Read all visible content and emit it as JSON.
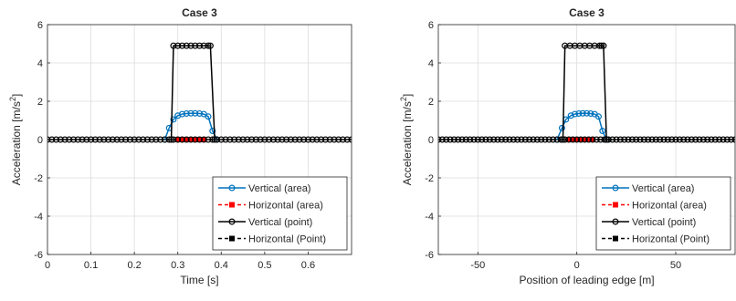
{
  "chart_data": [
    {
      "type": "line",
      "title": "Case 3",
      "xlabel": "Time [s]",
      "ylabel": "Acceleration [m/s",
      "ylabel_sup": "2",
      "ylabel_close": "]",
      "xlim": [
        0,
        0.7
      ],
      "ylim": [
        -6,
        6
      ],
      "xticks": [
        0,
        0.1,
        0.2,
        0.3,
        0.4,
        0.5,
        0.6
      ],
      "xtick_labels": [
        "0",
        "0.1",
        "0.2",
        "0.3",
        "0.4",
        "0.5",
        "0.6"
      ],
      "yticks": [
        -6,
        -4,
        -2,
        0,
        2,
        4,
        6
      ],
      "ytick_labels": [
        "-6",
        "-4",
        "-2",
        "0",
        "2",
        "4",
        "6"
      ],
      "grid": true,
      "legend_position": "bottom-right",
      "series": [
        {
          "name": "Vertical (area)",
          "color": "#0072BD",
          "dash": "solid",
          "marker": "circle",
          "x": [
            0.27,
            0.28,
            0.29,
            0.3,
            0.31,
            0.32,
            0.33,
            0.34,
            0.35,
            0.36,
            0.37,
            0.38,
            0.39
          ],
          "y": [
            0,
            0.6,
            1.05,
            1.25,
            1.33,
            1.36,
            1.37,
            1.37,
            1.36,
            1.33,
            1.2,
            0.45,
            0
          ]
        },
        {
          "name": "Horizontal (area)",
          "color": "#FF0000",
          "dash": "dashed",
          "marker": "square",
          "x": [
            0.3,
            0.31,
            0.32,
            0.33,
            0.34,
            0.35,
            0.36
          ],
          "y": [
            0,
            0,
            0,
            0,
            0,
            0,
            0
          ]
        },
        {
          "name": "Vertical (point)",
          "color": "#000000",
          "dash": "solid",
          "marker": "circle",
          "x": [
            0.285,
            0.29,
            0.3,
            0.31,
            0.32,
            0.33,
            0.34,
            0.35,
            0.36,
            0.37,
            0.375,
            0.385
          ],
          "y": [
            0,
            4.9,
            4.9,
            4.9,
            4.9,
            4.9,
            4.9,
            4.9,
            4.9,
            4.9,
            4.9,
            0
          ]
        },
        {
          "name": "Horizontal (Point)",
          "color": "#000000",
          "dash": "dashed",
          "marker": "square",
          "x": [],
          "y": []
        }
      ],
      "baseline_markers": {
        "from": 0,
        "to": 0.7,
        "step": 0.01
      }
    },
    {
      "type": "line",
      "title": "Case 3",
      "xlabel": "Position of leading edge [m]",
      "ylabel": "Acceleration [m/s",
      "ylabel_sup": "2",
      "ylabel_close": "]",
      "xlim": [
        -70,
        80
      ],
      "ylim": [
        -6,
        6
      ],
      "xticks": [
        -50,
        0,
        50
      ],
      "xtick_labels": [
        "-50",
        "0",
        "50"
      ],
      "yticks": [
        -6,
        -4,
        -2,
        0,
        2,
        4,
        6
      ],
      "ytick_labels": [
        "-6",
        "-4",
        "-2",
        "0",
        "2",
        "4",
        "6"
      ],
      "grid": true,
      "legend_position": "bottom-right",
      "series": [
        {
          "name": "Vertical (area)",
          "color": "#0072BD",
          "dash": "solid",
          "marker": "circle",
          "x": [
            -10,
            -7.5,
            -5.5,
            -3,
            -1,
            1,
            3,
            5,
            7,
            9,
            11,
            13,
            15
          ],
          "y": [
            0,
            0.6,
            1.05,
            1.25,
            1.33,
            1.36,
            1.37,
            1.37,
            1.36,
            1.33,
            1.2,
            0.45,
            0
          ]
        },
        {
          "name": "Horizontal (area)",
          "color": "#FF0000",
          "dash": "dashed",
          "marker": "square",
          "x": [
            -4,
            -2,
            0,
            2,
            4,
            6,
            8
          ],
          "y": [
            0,
            0,
            0,
            0,
            0,
            0,
            0
          ]
        },
        {
          "name": "Vertical (point)",
          "color": "#000000",
          "dash": "solid",
          "marker": "circle",
          "x": [
            -7,
            -6,
            -3.5,
            -1,
            1.5,
            4,
            6.5,
            9,
            11.5,
            12.5,
            13.5,
            15
          ],
          "y": [
            0,
            4.9,
            4.9,
            4.9,
            4.9,
            4.9,
            4.9,
            4.9,
            4.9,
            4.9,
            4.9,
            0
          ]
        },
        {
          "name": "Horizontal (Point)",
          "color": "#000000",
          "dash": "dashed",
          "marker": "square",
          "x": [],
          "y": []
        }
      ],
      "baseline_markers": {
        "from": -70,
        "to": 80,
        "step": 2
      }
    }
  ]
}
